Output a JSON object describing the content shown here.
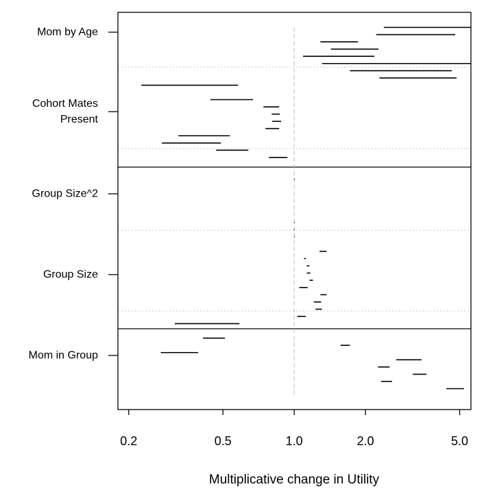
{
  "chart_data": {
    "type": "interval",
    "xlabel": "Multiplicative change in Utility",
    "categories": [
      "Mom by Age",
      "Cohort Mates Present",
      "Group Size^2",
      "Group Size",
      "Mom in Group"
    ],
    "xscale": "log",
    "xlim": [
      0.18,
      5.58
    ],
    "xticks": [
      0.2,
      0.5,
      {
        "value": 1,
        "label": "1.0"
      },
      {
        "value": 2,
        "label": "2.0"
      },
      {
        "value": 5,
        "label": "5.0"
      }
    ],
    "reference_line": 1,
    "color": "#000000",
    "intervals": [
      [
        2.39,
        6.0
      ],
      [
        2.22,
        4.79
      ],
      [
        1.29,
        1.86
      ],
      [
        1.43,
        2.27
      ],
      [
        1.09,
        2.18
      ],
      [
        1.31,
        6.0
      ],
      [
        1.72,
        4.63
      ],
      [
        2.29,
        4.85
      ],
      [
        0.226,
        0.579
      ],
      null,
      [
        0.443,
        0.67
      ],
      [
        0.741,
        0.864
      ],
      [
        0.803,
        0.869
      ],
      [
        0.808,
        0.881
      ],
      [
        0.756,
        0.864
      ],
      [
        0.324,
        0.535
      ],
      [
        0.276,
        0.49
      ],
      [
        0.468,
        0.64
      ],
      [
        0.782,
        0.936
      ],
      null,
      null,
      [
        0.999,
        1.001
      ],
      null,
      null,
      null,
      null,
      null,
      [
        0.998,
        1.002
      ],
      [
        0.998,
        1.002
      ],
      [
        0.998,
        1.002
      ],
      null,
      [
        1.28,
        1.37
      ],
      [
        1.1,
        1.12
      ],
      [
        1.13,
        1.16
      ],
      [
        1.13,
        1.17
      ],
      [
        1.16,
        1.2
      ],
      [
        1.05,
        1.14
      ],
      [
        1.29,
        1.37
      ],
      [
        1.21,
        1.3
      ],
      [
        1.23,
        1.31
      ],
      [
        1.03,
        1.12
      ],
      [
        0.313,
        0.587
      ],
      null,
      [
        0.412,
        0.51
      ],
      [
        1.57,
        1.72
      ],
      [
        0.273,
        0.393
      ],
      [
        2.7,
        3.45
      ],
      [
        2.26,
        2.53
      ],
      [
        3.17,
        3.62
      ],
      [
        2.33,
        2.59
      ],
      [
        4.39,
        5.22
      ]
    ]
  }
}
